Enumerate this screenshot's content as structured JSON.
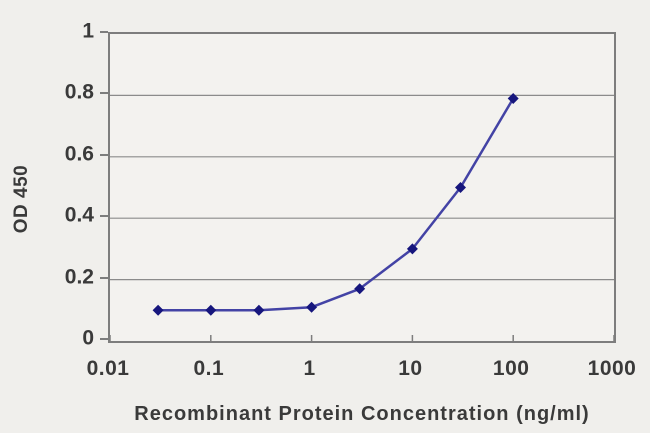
{
  "figure": {
    "background_color": "#f0efec",
    "plot_background_color": "#f3f2ef",
    "grid_color": "#8b8b8b",
    "axis_border_color": "#7d7d7d",
    "label_text_color": "#3a3a3a"
  },
  "chart_data": {
    "type": "line",
    "title": "",
    "xlabel": "Recombinant Protein Concentration (ng/ml)",
    "ylabel": "OD 450",
    "x_scale": "log",
    "xlim": [
      0.01,
      1000
    ],
    "ylim": [
      0,
      1
    ],
    "x_tick_labels": [
      "0.01",
      "0.1",
      "1",
      "10",
      "100",
      "1000"
    ],
    "x_tick_values": [
      0.01,
      0.1,
      1,
      10,
      100,
      1000
    ],
    "y_tick_labels": [
      "0",
      "0.2",
      "0.4",
      "0.6",
      "0.8",
      "1"
    ],
    "y_tick_values": [
      0,
      0.2,
      0.4,
      0.6,
      0.8,
      1
    ],
    "grid": "horizontal",
    "legend_position": "none",
    "series": [
      {
        "name": "OD 450",
        "x": [
          0.03,
          0.1,
          0.3,
          1,
          3,
          10,
          30,
          100
        ],
        "y": [
          0.1,
          0.1,
          0.1,
          0.11,
          0.17,
          0.3,
          0.5,
          0.79
        ],
        "line_color": "#4343a5",
        "line_width": 2.5,
        "marker": "diamond",
        "marker_color": "#16167d",
        "marker_size": 11
      }
    ]
  }
}
